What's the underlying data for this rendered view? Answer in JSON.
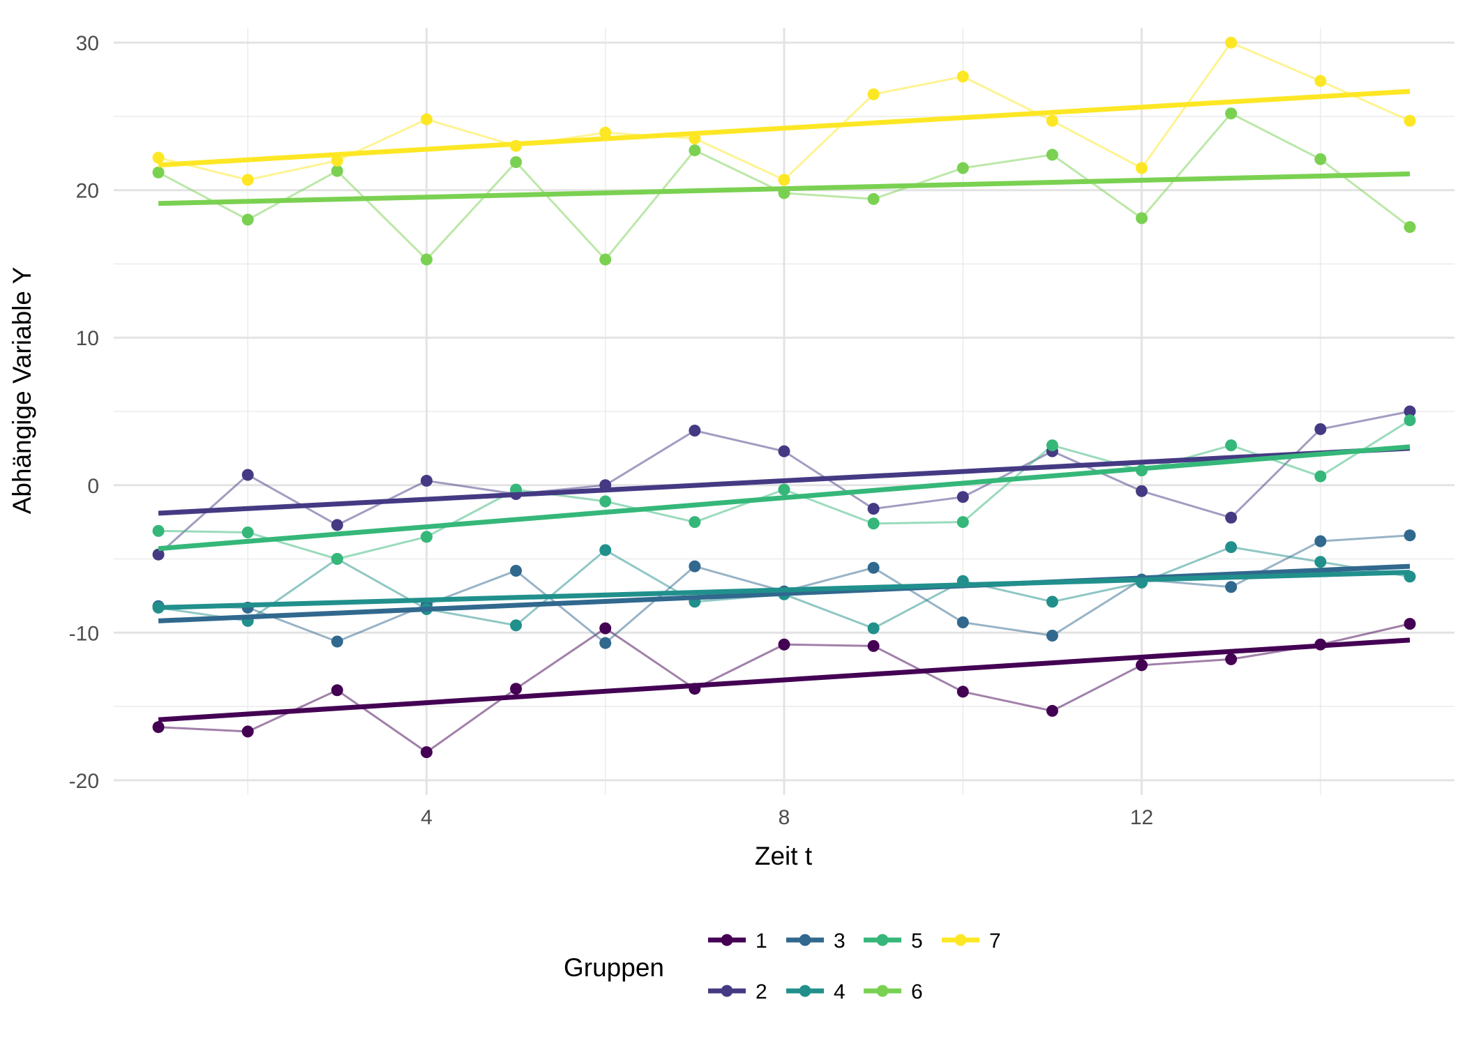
{
  "chart_data": {
    "type": "line",
    "xlabel": "Zeit t",
    "ylabel": "Abhängige Variable Y",
    "xlim": [
      0.5,
      15.5
    ],
    "ylim": [
      -21,
      31
    ],
    "x_major_ticks": [
      4,
      8,
      12
    ],
    "x_minor_ticks": [
      2,
      6,
      10,
      14
    ],
    "y_major_ticks": [
      -20,
      -10,
      0,
      10,
      20,
      30
    ],
    "y_minor_ticks": [
      -15,
      -5,
      5,
      15,
      25
    ],
    "grid": true,
    "legend": {
      "title": "Gruppen",
      "position": "bottom",
      "entries": [
        "1",
        "2",
        "3",
        "4",
        "5",
        "6",
        "7"
      ]
    },
    "x": [
      1,
      2,
      3,
      4,
      5,
      6,
      7,
      8,
      9,
      10,
      11,
      12,
      13,
      14,
      15
    ],
    "series": [
      {
        "name": "1",
        "color": "#440154",
        "values": [
          -16.4,
          -16.7,
          -13.9,
          -18.1,
          -13.8,
          -9.7,
          -13.8,
          -10.8,
          -10.9,
          -14.0,
          -15.3,
          -12.2,
          -11.8,
          -10.8,
          -9.4
        ],
        "trend": [
          -15.9,
          -10.5
        ]
      },
      {
        "name": "2",
        "color": "#443A83",
        "values": [
          -4.7,
          0.7,
          -2.7,
          0.3,
          -0.6,
          0.0,
          3.7,
          2.3,
          -1.6,
          -0.8,
          2.3,
          -0.4,
          -2.2,
          3.8,
          5.0
        ],
        "trend": [
          -1.9,
          2.5
        ]
      },
      {
        "name": "3",
        "color": "#31688E",
        "values": [
          -8.2,
          -8.3,
          -10.6,
          -8.1,
          -5.8,
          -10.7,
          -5.5,
          -7.2,
          -5.6,
          -9.3,
          -10.2,
          -6.4,
          -6.9,
          -3.8,
          -3.4
        ],
        "trend": [
          -9.2,
          -5.5
        ]
      },
      {
        "name": "4",
        "color": "#21908C",
        "values": [
          -8.3,
          -9.2,
          -5.0,
          -8.4,
          -9.5,
          -4.4,
          -7.9,
          -7.4,
          -9.7,
          -6.5,
          -7.9,
          -6.6,
          -4.2,
          -5.2,
          -6.2
        ],
        "trend": [
          -8.3,
          -5.9
        ]
      },
      {
        "name": "5",
        "color": "#35B779",
        "values": [
          -3.1,
          -3.2,
          -5.0,
          -3.5,
          -0.3,
          -1.1,
          -2.5,
          -0.3,
          -2.6,
          -2.5,
          2.7,
          1.0,
          2.7,
          0.6,
          4.4
        ],
        "trend": [
          -4.3,
          2.6
        ]
      },
      {
        "name": "6",
        "color": "#7AD151",
        "values": [
          21.2,
          18.0,
          21.3,
          15.3,
          21.9,
          15.3,
          22.7,
          19.8,
          19.4,
          21.5,
          22.4,
          18.1,
          25.2,
          22.1,
          17.5
        ],
        "trend": [
          19.1,
          21.1
        ]
      },
      {
        "name": "7",
        "color": "#FDE725",
        "values": [
          22.2,
          20.7,
          22.0,
          24.8,
          23.0,
          23.9,
          23.5,
          20.7,
          26.5,
          27.7,
          24.7,
          21.5,
          30.0,
          27.4,
          24.7
        ],
        "trend": [
          21.7,
          26.7
        ]
      }
    ]
  }
}
